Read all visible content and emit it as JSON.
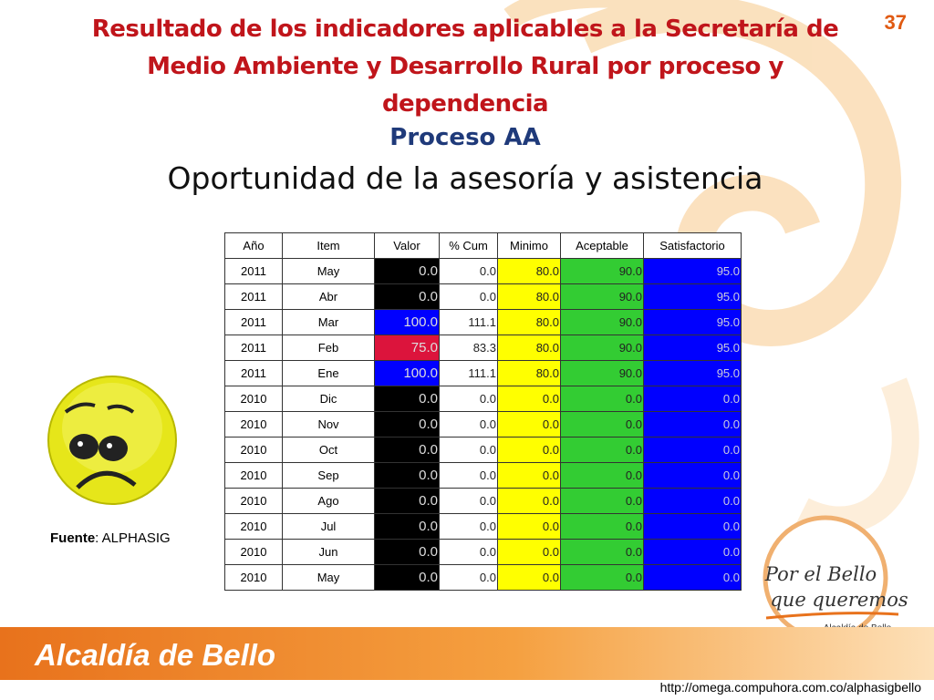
{
  "page_number": "37",
  "title_lines": [
    "Resultado de los indicadores aplicables a la Secretaría de",
    "Medio Ambiente y Desarrollo Rural  por proceso y",
    "dependencia"
  ],
  "process": "Proceso AA",
  "subtitle": "Oportunidad de la asesoría y asistencia",
  "table": {
    "header": [
      "Año",
      "Item",
      "Valor",
      "% Cum",
      "Minimo",
      "Aceptable",
      "Satisfactorio"
    ],
    "column_colors": [
      null,
      null,
      null,
      null,
      "#ffff00",
      "#33cc33",
      "#0000ff"
    ],
    "rows": [
      [
        "2011",
        "May",
        "0.0",
        "0.0",
        "80.0",
        "90.0",
        "95.0"
      ],
      [
        "2011",
        "Abr",
        "0.0",
        "0.0",
        "80.0",
        "90.0",
        "95.0"
      ],
      [
        "2011",
        "Mar",
        "100.0",
        "111.1",
        "80.0",
        "90.0",
        "95.0"
      ],
      [
        "2011",
        "Feb",
        "75.0",
        "83.3",
        "80.0",
        "90.0",
        "95.0"
      ],
      [
        "2011",
        "Ene",
        "100.0",
        "111.1",
        "80.0",
        "90.0",
        "95.0"
      ],
      [
        "2010",
        "Dic",
        "0.0",
        "0.0",
        "0.0",
        "0.0",
        "0.0"
      ],
      [
        "2010",
        "Nov",
        "0.0",
        "0.0",
        "0.0",
        "0.0",
        "0.0"
      ],
      [
        "2010",
        "Oct",
        "0.0",
        "0.0",
        "0.0",
        "0.0",
        "0.0"
      ],
      [
        "2010",
        "Sep",
        "0.0",
        "0.0",
        "0.0",
        "0.0",
        "0.0"
      ],
      [
        "2010",
        "Ago",
        "0.0",
        "0.0",
        "0.0",
        "0.0",
        "0.0"
      ],
      [
        "2010",
        "Jul",
        "0.0",
        "0.0",
        "0.0",
        "0.0",
        "0.0"
      ],
      [
        "2010",
        "Jun",
        "0.0",
        "0.0",
        "0.0",
        "0.0",
        "0.0"
      ],
      [
        "2010",
        "May",
        "0.0",
        "0.0",
        "0.0",
        "0.0",
        "0.0"
      ]
    ],
    "valor_colors": [
      "#000000",
      "#000000",
      "#0000ff",
      "#dc143c",
      "#0000ff",
      "#000000",
      "#000000",
      "#000000",
      "#000000",
      "#000000",
      "#000000",
      "#000000",
      "#000000"
    ]
  },
  "source_label": "Fuente",
  "source_value": ": ALPHASIG",
  "footer": "Alcaldía de Bello",
  "logo_lines": [
    "Por el Bello",
    "que queremos"
  ],
  "logo_caption": "Alcaldía de Bello",
  "url": "http://omega.compuhora.com.co/alphasigbello"
}
